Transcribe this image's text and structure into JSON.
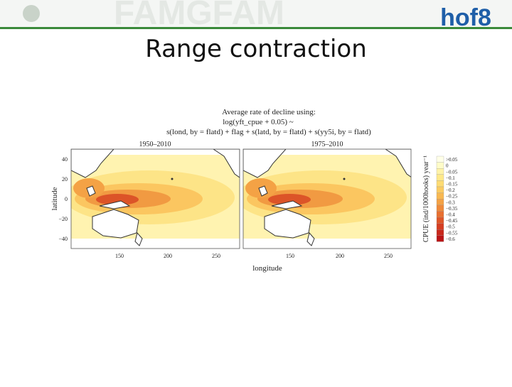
{
  "header": {
    "title": "Range contraction",
    "logo": "hof8"
  },
  "figure": {
    "title_lines": [
      "Average rate of decline using:",
      "log(yft_cpue + 0.05) ~",
      "s(lond, by = flatd) + flag + s(latd, by = flatd) + s(yy5i, by = flatd)"
    ],
    "panels": [
      {
        "title": "1950–2010",
        "xticks": [
          "150",
          "200",
          "250"
        ]
      },
      {
        "title": "1975–2010",
        "xticks": [
          "150",
          "200",
          "250"
        ]
      }
    ],
    "yticks": [
      "40",
      "20",
      "0",
      "−20",
      "−40"
    ],
    "y_label": "latitude",
    "x_label": "longitude",
    "legend": {
      "title": "CPUE (ind/1000hooks) year⁻¹",
      "labels": [
        ">0.05",
        "0",
        "−0.05",
        "−0.1",
        "−0.15",
        "−0.2",
        "−0.25",
        "−0.3",
        "−0.35",
        "−0.4",
        "−0.45",
        "−0.5",
        "−0.55",
        "−0.6"
      ],
      "colors": [
        "#ffffe8",
        "#fffcc8",
        "#fff3a8",
        "#ffe98a",
        "#fddc74",
        "#fbcb62",
        "#f8b852",
        "#f4a245",
        "#ef8a3a",
        "#e87030",
        "#df5628",
        "#d53e22",
        "#c8281c",
        "#ba1416"
      ]
    }
  }
}
